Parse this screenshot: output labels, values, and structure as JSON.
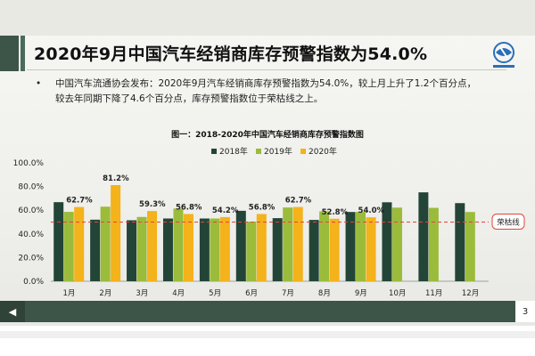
{
  "slide": {
    "title": "2020年9月中国汽车经销商库存预警指数为54.0%",
    "bullet_marker": "•",
    "bullet_line1": "中国汽车流通协会发布：2020年9月汽车经销商库存预警指数为54.0%，较上月上升了1.2个百分点，",
    "bullet_line2": "较去年同期下降了4.6个百分点，库存预警指数位于荣枯线之上。",
    "logo_icon": "association-logo-icon",
    "page_number": "3",
    "nav_icon": "prev-arrow-icon"
  },
  "chart_data": {
    "type": "bar",
    "title": "图一：2018-2020年中国汽车经销商库存预警指数图",
    "categories": [
      "1月",
      "2月",
      "3月",
      "4月",
      "5月",
      "6月",
      "7月",
      "8月",
      "9月",
      "10月",
      "11月",
      "12月"
    ],
    "series": [
      {
        "name": "2018年",
        "color": "#234537",
        "values": [
          66.8,
          52.0,
          51.5,
          53.0,
          53.0,
          59.5,
          53.3,
          51.8,
          58.5,
          66.7,
          75.1,
          66.0
        ]
      },
      {
        "name": "2019年",
        "color": "#9bbb3b",
        "values": [
          58.6,
          63.0,
          54.3,
          61.4,
          53.0,
          50.4,
          62.3,
          59.0,
          58.6,
          62.2,
          62.0,
          58.5
        ]
      },
      {
        "name": "2020年",
        "color": "#f4b21b",
        "values": [
          62.7,
          81.2,
          59.3,
          56.8,
          54.2,
          56.8,
          62.7,
          52.8,
          54.0,
          null,
          null,
          null
        ]
      }
    ],
    "data_labels": [
      "62.7%",
      "81.2%",
      "59.3%",
      "56.8%",
      "54.2%",
      "56.8%",
      "62.7%",
      "52.8%",
      "54.0%"
    ],
    "y_ticks": [
      "0.0%",
      "20.0%",
      "40.0%",
      "60.0%",
      "80.0%",
      "100.0%"
    ],
    "ylim": [
      0,
      100
    ],
    "reference_line": {
      "value": 50,
      "label": "荣枯线",
      "color": "#e0463a"
    },
    "legend_position": "top-center",
    "grid": false
  }
}
